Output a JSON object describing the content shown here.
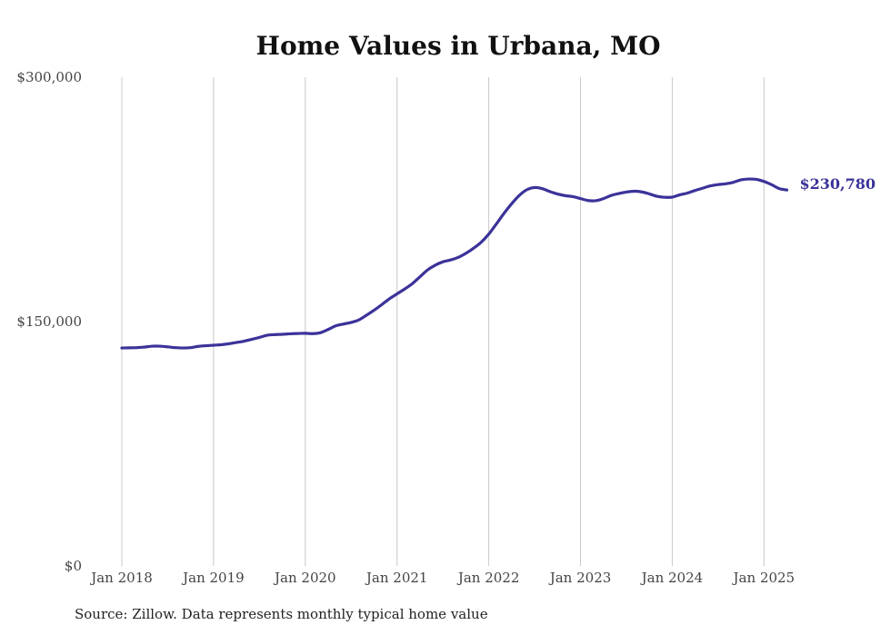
{
  "chart_data": {
    "type": "line",
    "title": "Home Values in Urbana, MO",
    "xlabel": "",
    "ylabel": "",
    "ylim": [
      0,
      300000
    ],
    "y_ticks": [
      {
        "value": 0,
        "label": "$0"
      },
      {
        "value": 150000,
        "label": "$150,000"
      },
      {
        "value": 300000,
        "label": "$300,000"
      }
    ],
    "x_ticks": [
      {
        "date": "2018-01",
        "label": "Jan 2018"
      },
      {
        "date": "2019-01",
        "label": "Jan 2019"
      },
      {
        "date": "2020-01",
        "label": "Jan 2020"
      },
      {
        "date": "2021-01",
        "label": "Jan 2021"
      },
      {
        "date": "2022-01",
        "label": "Jan 2022"
      },
      {
        "date": "2023-01",
        "label": "Jan 2023"
      },
      {
        "date": "2024-01",
        "label": "Jan 2024"
      },
      {
        "date": "2025-01",
        "label": "Jan 2025"
      }
    ],
    "grid": "vertical",
    "line_color": "#3b3399",
    "series": [
      {
        "x": [
          "2018-01",
          "2018-02",
          "2018-03",
          "2018-04",
          "2018-05",
          "2018-06",
          "2018-07",
          "2018-08",
          "2018-09",
          "2018-10",
          "2018-11",
          "2018-12",
          "2019-01",
          "2019-02",
          "2019-03",
          "2019-04",
          "2019-05",
          "2019-06",
          "2019-07",
          "2019-08",
          "2019-09",
          "2019-10",
          "2019-11",
          "2019-12",
          "2020-01",
          "2020-02",
          "2020-03",
          "2020-04",
          "2020-05",
          "2020-06",
          "2020-07",
          "2020-08",
          "2020-09",
          "2020-10",
          "2020-11",
          "2020-12",
          "2021-01",
          "2021-02",
          "2021-03",
          "2021-04",
          "2021-05",
          "2021-06",
          "2021-07",
          "2021-08",
          "2021-09",
          "2021-10",
          "2021-11",
          "2021-12",
          "2022-01",
          "2022-02",
          "2022-03",
          "2022-04",
          "2022-05",
          "2022-06",
          "2022-07",
          "2022-08",
          "2022-09",
          "2022-10",
          "2022-11",
          "2022-12",
          "2023-01",
          "2023-02",
          "2023-03",
          "2023-04",
          "2023-05",
          "2023-06",
          "2023-07",
          "2023-08",
          "2023-09",
          "2023-10",
          "2023-11",
          "2023-12",
          "2024-01",
          "2024-02",
          "2024-03",
          "2024-04",
          "2024-05",
          "2024-06",
          "2024-07",
          "2024-08",
          "2024-09",
          "2024-10",
          "2024-11",
          "2024-12",
          "2025-01",
          "2025-02",
          "2025-03",
          "2025-04"
        ],
        "values": [
          133800,
          133900,
          134000,
          134400,
          134900,
          134900,
          134500,
          134000,
          133800,
          134000,
          134800,
          135200,
          135500,
          135800,
          136400,
          137200,
          138000,
          139100,
          140300,
          141600,
          142000,
          142200,
          142500,
          142700,
          142800,
          142600,
          143200,
          145200,
          147400,
          148500,
          149500,
          151000,
          153900,
          157000,
          160400,
          164000,
          167000,
          170000,
          173300,
          177500,
          181700,
          184600,
          186700,
          187800,
          189400,
          191900,
          195000,
          198700,
          203700,
          210000,
          216500,
          222400,
          227500,
          231000,
          232300,
          231600,
          229800,
          228300,
          227300,
          226700,
          225500,
          224300,
          224200,
          225500,
          227400,
          228600,
          229500,
          230000,
          229600,
          228400,
          226900,
          226300,
          226400,
          227800,
          228900,
          230500,
          231900,
          233300,
          234100,
          234600,
          235500,
          237000,
          237500,
          237300,
          236000,
          234000,
          231600,
          230780
        ],
        "end_label": "$230,780"
      }
    ]
  },
  "footer": {
    "source": "Source: Zillow. Data represents monthly typical home value"
  }
}
